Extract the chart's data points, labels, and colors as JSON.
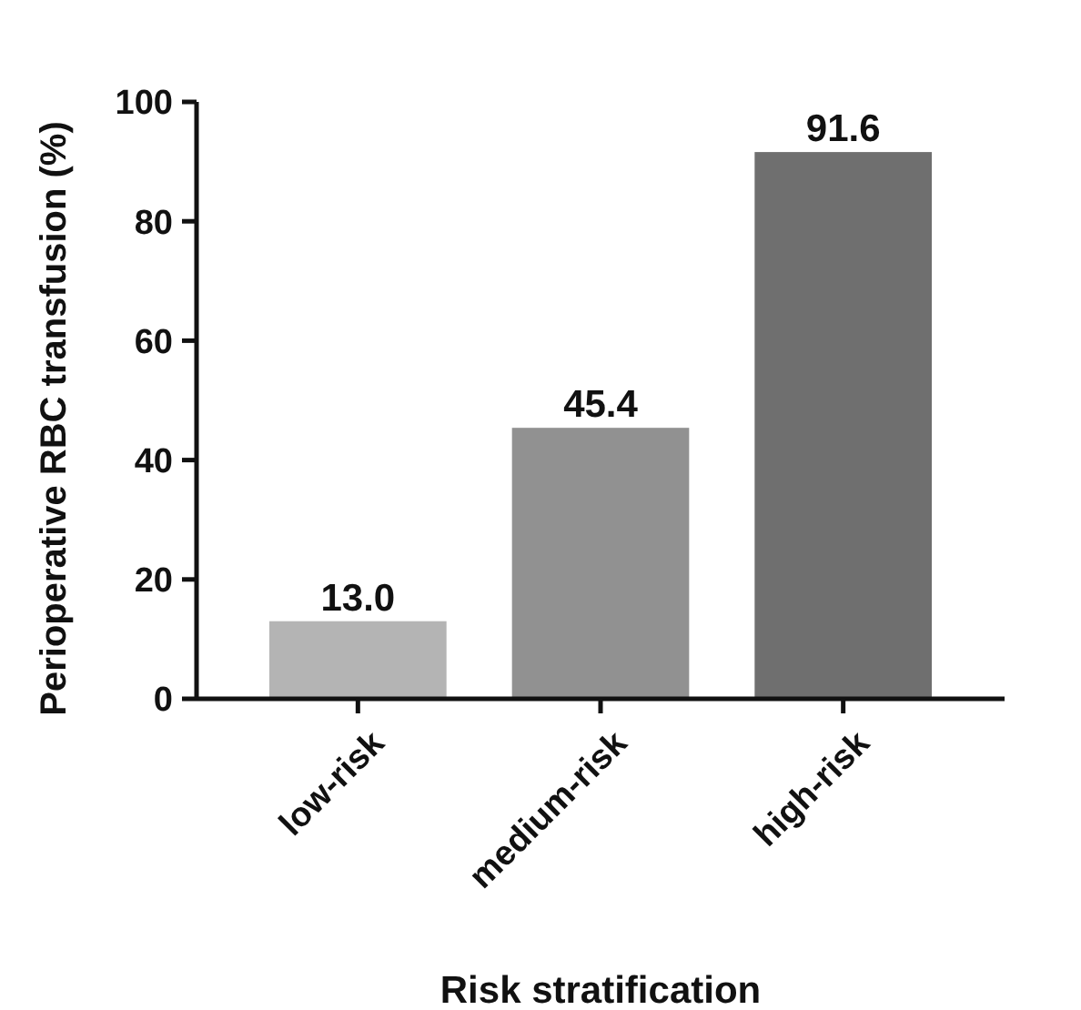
{
  "chart_data": {
    "type": "bar",
    "xlabel": "Risk stratification",
    "ylabel": "Perioperative RBC transfusion (%)",
    "categories": [
      "low-risk",
      "medium-risk",
      "high-risk"
    ],
    "values": [
      13.0,
      45.4,
      91.6
    ],
    "colors": [
      "#b4b4b4",
      "#919191",
      "#6f6f6f"
    ],
    "value_labels": [
      "13.0",
      "45.4",
      "91.6"
    ],
    "ylim": [
      0,
      100
    ],
    "yticks": [
      0,
      20,
      40,
      60,
      80,
      100
    ]
  }
}
